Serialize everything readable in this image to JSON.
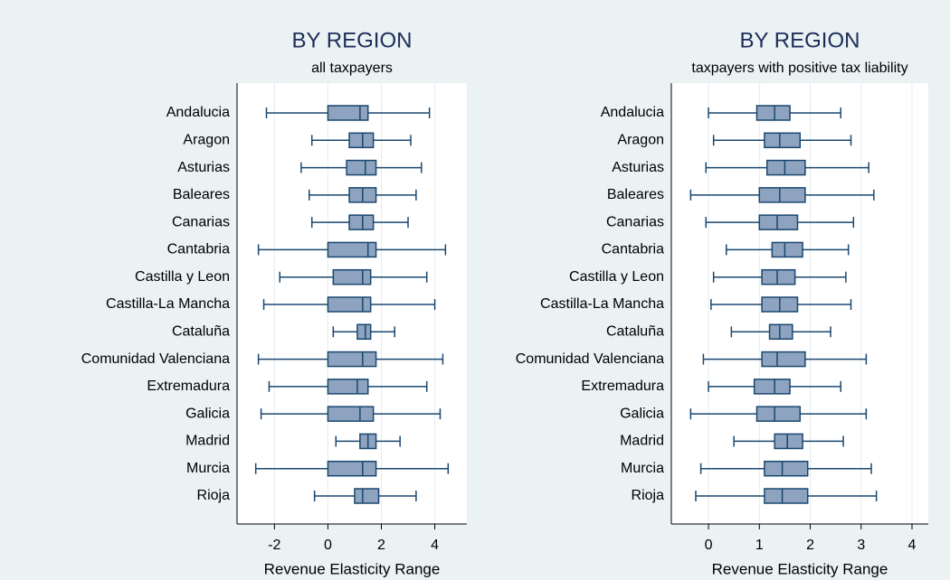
{
  "chart_data": [
    {
      "type": "boxplot",
      "title": "BY REGION",
      "subtitle": "all taxpayers",
      "xlabel": "Revenue Elasticity Range",
      "categories": [
        "Andalucia",
        "Aragon",
        "Asturias",
        "Baleares",
        "Canarias",
        "Cantabria",
        "Castilla y Leon",
        "Castilla-La Mancha",
        "Cataluña",
        "Comunidad Valenciana",
        "Extremadura",
        "Galicia",
        "Madrid",
        "Murcia",
        "Rioja"
      ],
      "color": "#8ea3bf",
      "edge_color": "#1a476f",
      "grid": true,
      "min": [
        -2.3,
        -0.6,
        -1.0,
        -0.7,
        -0.6,
        -2.6,
        -1.8,
        -2.4,
        0.2,
        -2.6,
        -2.2,
        -2.5,
        0.3,
        -2.7,
        -0.5
      ],
      "q1": [
        0,
        0.8,
        0.7,
        0.8,
        0.8,
        0,
        0.2,
        0,
        1.1,
        0,
        0,
        0,
        1.2,
        0,
        1.0
      ],
      "median": [
        1.2,
        1.3,
        1.4,
        1.3,
        1.3,
        1.5,
        1.3,
        1.3,
        1.4,
        1.3,
        1.1,
        1.2,
        1.5,
        1.3,
        1.3
      ],
      "q3": [
        1.5,
        1.7,
        1.8,
        1.8,
        1.7,
        1.8,
        1.6,
        1.6,
        1.6,
        1.8,
        1.5,
        1.7,
        1.8,
        1.8,
        1.9
      ],
      "max": [
        3.8,
        3.1,
        3.5,
        3.3,
        3.0,
        4.4,
        3.7,
        4.0,
        2.5,
        4.3,
        3.7,
        4.2,
        2.7,
        4.5,
        3.3
      ],
      "xlim": [
        -3.4,
        5.2
      ],
      "xticks": [
        -2,
        0,
        2,
        4
      ]
    },
    {
      "type": "boxplot",
      "title": "BY REGION",
      "subtitle": "taxpayers with positive tax liability",
      "xlabel": "Revenue Elasticity Range",
      "categories": [
        "Andalucia",
        "Aragon",
        "Asturias",
        "Baleares",
        "Canarias",
        "Cantabria",
        "Castilla y Leon",
        "Castilla-La Mancha",
        "Cataluña",
        "Comunidad Valenciana",
        "Extremadura",
        "Galicia",
        "Madrid",
        "Murcia",
        "Rioja"
      ],
      "color": "#8ea3bf",
      "edge_color": "#1a476f",
      "grid": true,
      "min": [
        0,
        0.1,
        -0.05,
        -0.35,
        -0.05,
        0.35,
        0.1,
        0.05,
        0.45,
        -0.1,
        0,
        -0.35,
        0.5,
        -0.15,
        -0.25
      ],
      "q1": [
        0.95,
        1.1,
        1.15,
        1.0,
        1.0,
        1.25,
        1.05,
        1.05,
        1.2,
        1.05,
        0.9,
        0.95,
        1.3,
        1.1,
        1.1
      ],
      "median": [
        1.3,
        1.4,
        1.5,
        1.4,
        1.35,
        1.5,
        1.35,
        1.4,
        1.4,
        1.35,
        1.3,
        1.3,
        1.55,
        1.45,
        1.45
      ],
      "q3": [
        1.6,
        1.8,
        1.9,
        1.9,
        1.75,
        1.85,
        1.7,
        1.75,
        1.65,
        1.9,
        1.6,
        1.8,
        1.85,
        1.95,
        1.95
      ],
      "max": [
        2.6,
        2.8,
        3.15,
        3.25,
        2.85,
        2.75,
        2.7,
        2.8,
        2.4,
        3.1,
        2.6,
        3.1,
        2.65,
        3.2,
        3.3
      ],
      "xlim": [
        -0.73,
        4.32
      ],
      "xticks": [
        0,
        1,
        2,
        3,
        4
      ]
    }
  ]
}
